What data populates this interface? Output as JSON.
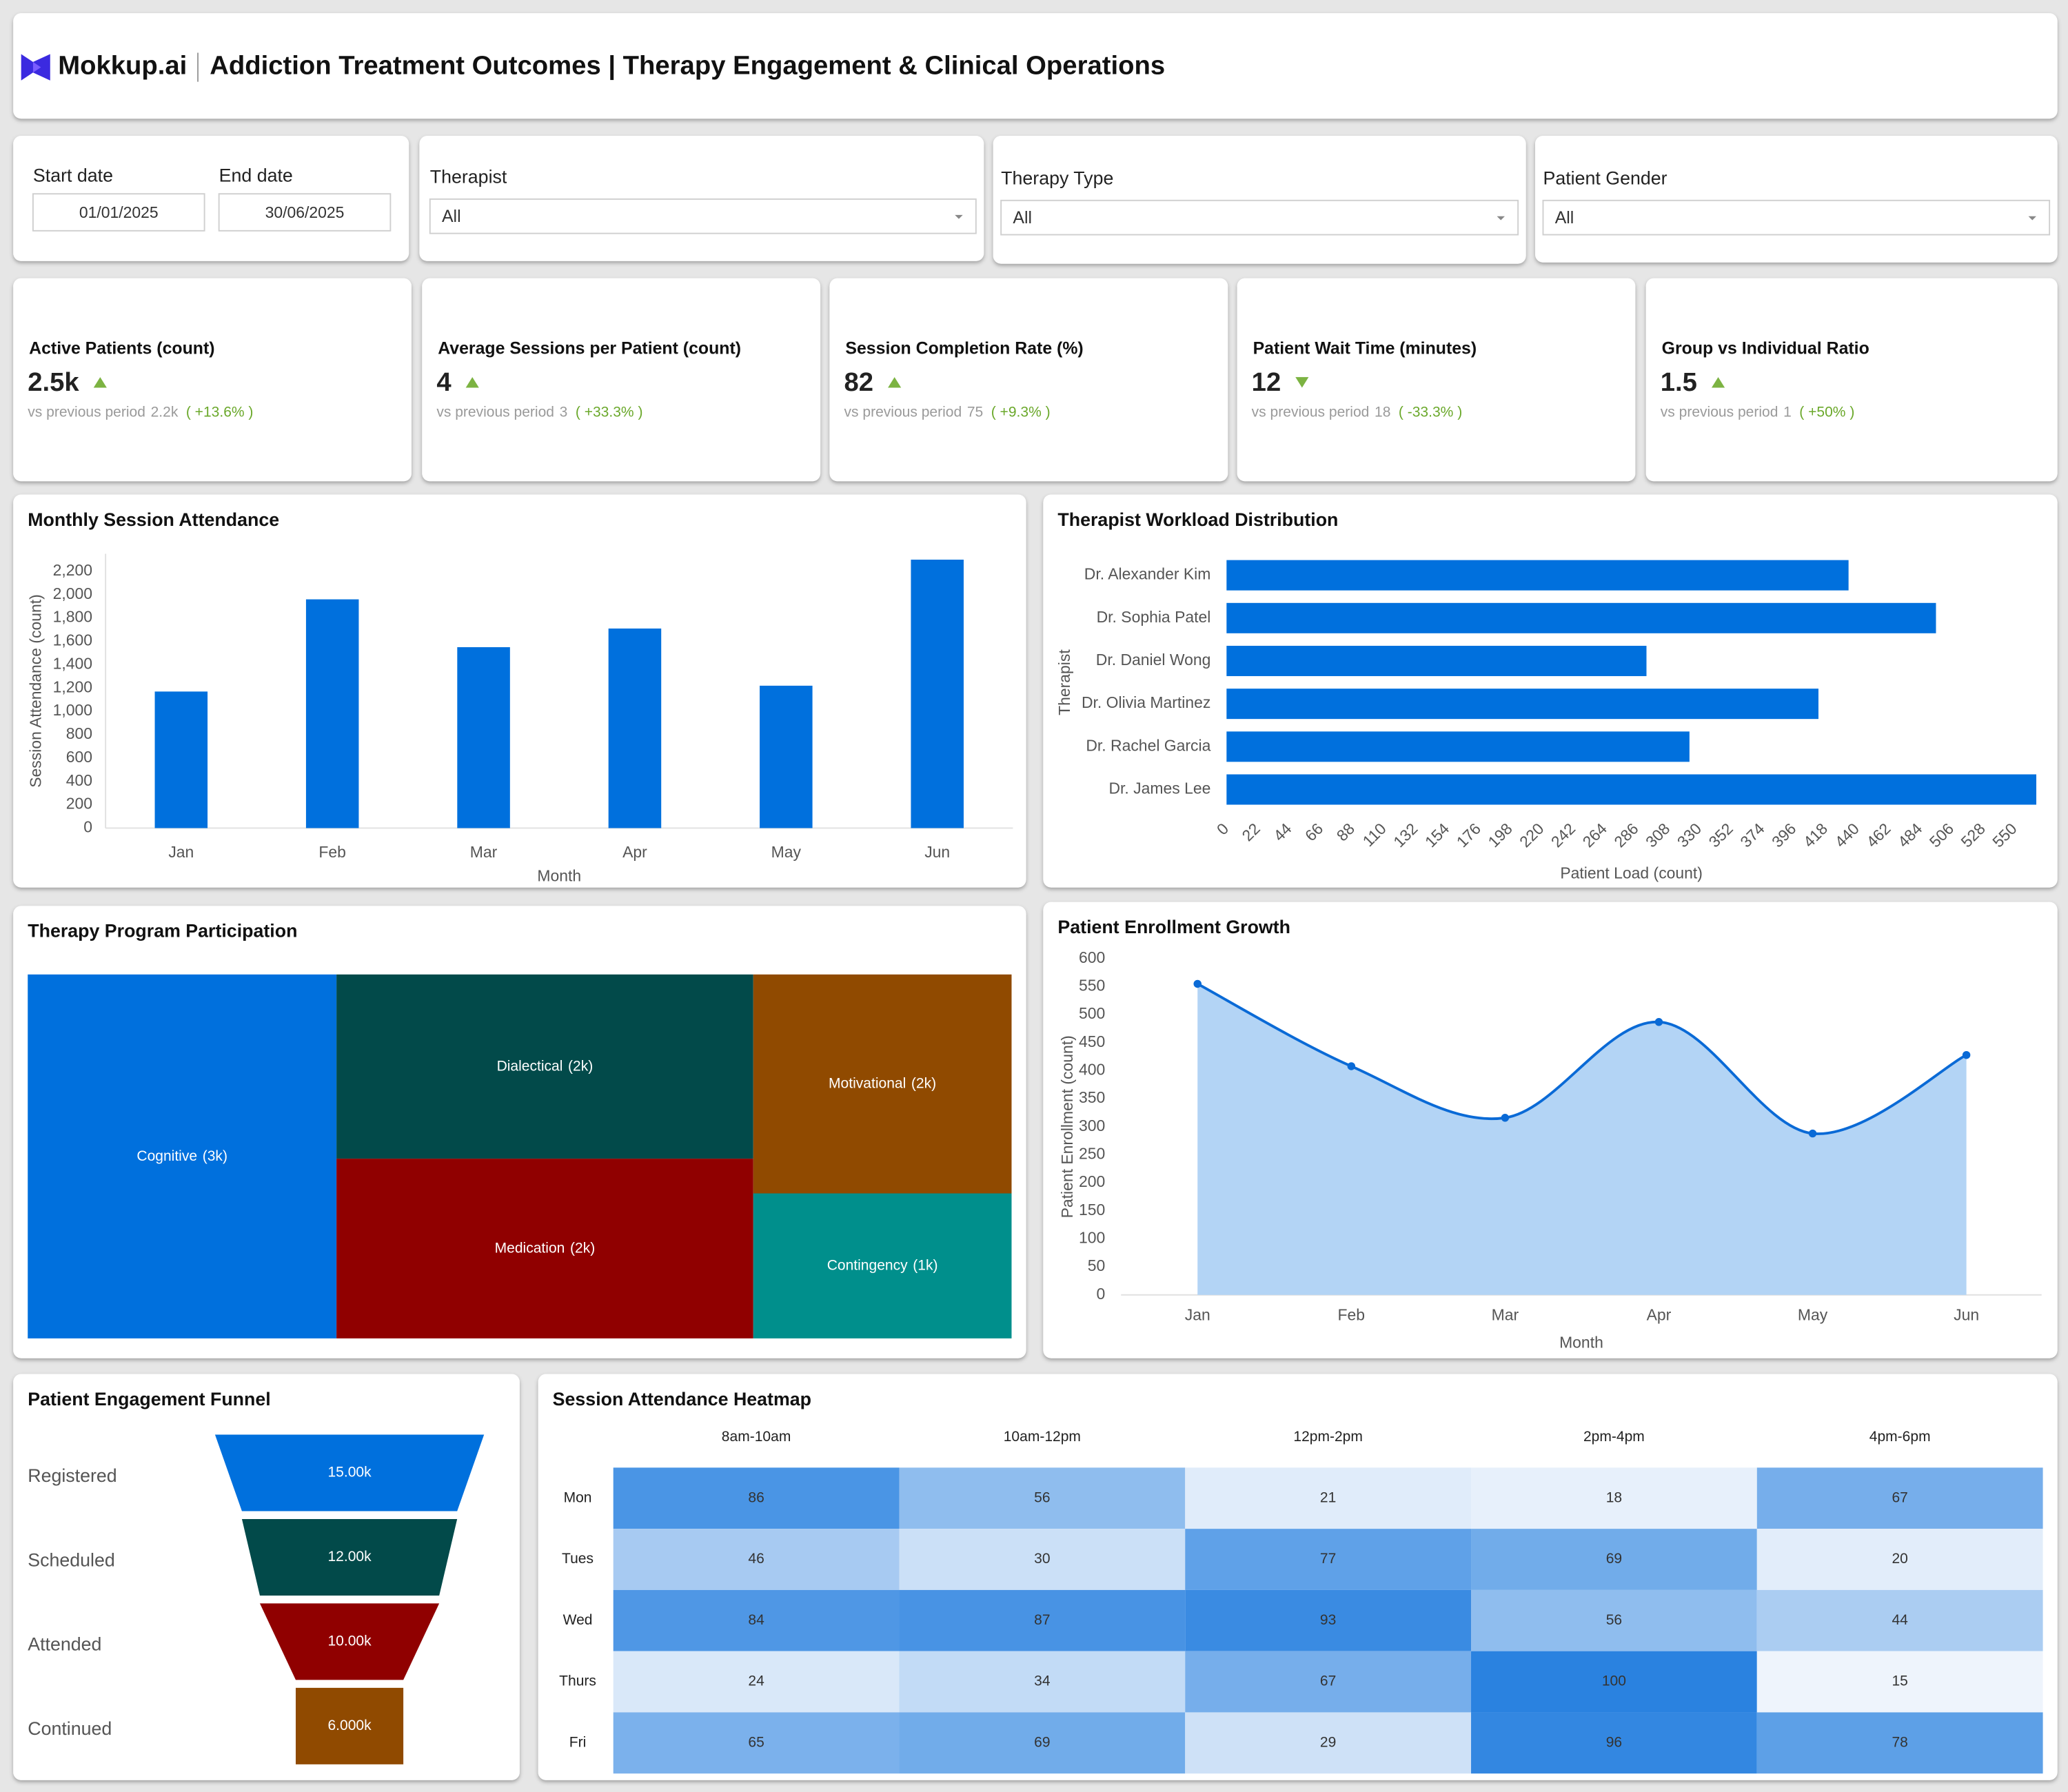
{
  "header": {
    "logo": "Mokkup.ai",
    "title": "Addiction Treatment Outcomes | Therapy Engagement & Clinical Operations"
  },
  "filters": [
    {
      "label": "Start date",
      "value": "01/01/2025"
    },
    {
      "label": "End date",
      "value": "30/06/2025"
    },
    {
      "label": "Therapist",
      "value": "All"
    },
    {
      "label": "Therapy Type",
      "value": "All"
    },
    {
      "label": "Patient Gender",
      "value": "All"
    }
  ],
  "kpis": [
    {
      "title": "Active Patients (count)",
      "value": "2.5k",
      "trend": "up",
      "comparison": "vs previous period",
      "previous": "2.2k",
      "change": "( +13.6% )"
    },
    {
      "title": "Average Sessions per Patient (count)",
      "value": "4",
      "trend": "up",
      "comparison": "vs previous period",
      "previous": "3",
      "change": "( +33.3% )"
    },
    {
      "title": "Session Completion Rate (%)",
      "value": "82",
      "trend": "up",
      "comparison": "vs previous period",
      "previous": "75",
      "change": "( +9.3% )"
    },
    {
      "title": "Patient Wait Time (minutes)",
      "value": "12",
      "trend": "down",
      "comparison": "vs previous period",
      "previous": "18",
      "change": "( -33.3% )"
    },
    {
      "title": "Group vs Individual Ratio",
      "value": "1.5",
      "trend": "up",
      "comparison": "vs previous period",
      "previous": "1",
      "change": "( +50% )"
    }
  ],
  "chart_data": [
    {
      "type": "bar",
      "title": "Monthly Session Attendance",
      "x_label": "Month",
      "y_label": "Session Attendance (count)",
      "categories": [
        "Jan",
        "Feb",
        "Mar",
        "Apr",
        "May",
        "Jun"
      ],
      "values": [
        1170,
        1960,
        1550,
        1710,
        1220,
        2300
      ],
      "color": "#0070DD",
      "ylim": [
        0,
        2350
      ],
      "yticks": [
        0,
        200,
        400,
        600,
        800,
        {
          "value": 1000,
          "label": "1,000"
        },
        {
          "value": 1200,
          "label": "1,200"
        },
        {
          "value": 1400,
          "label": "1,400"
        },
        {
          "value": 1600,
          "label": "1,600"
        },
        {
          "value": 1800,
          "label": "1,800"
        },
        {
          "value": 2000,
          "label": "2,000"
        },
        {
          "value": 2200,
          "label": "2,200"
        }
      ],
      "grid": false
    },
    {
      "type": "bar",
      "orientation": "horizontal",
      "title": "Therapist Workload Distribution",
      "x_label": "Patient Load (count)",
      "y_label": "Therapist",
      "categories": [
        "Dr. Alexander Kim",
        "Dr. Sophia Patel",
        "Dr. Daniel Wong",
        "Dr. Olivia Martinez",
        "Dr. Rachel Garcia",
        "Dr. James Lee"
      ],
      "values": [
        434,
        495,
        293,
        413,
        323,
        565
      ],
      "color": "#0070DD",
      "xlim": [
        0,
        565
      ],
      "xticks": [
        0,
        22,
        44,
        66,
        88,
        110,
        132,
        154,
        176,
        198,
        220,
        242,
        264,
        286,
        308,
        330,
        352,
        374,
        396,
        418,
        440,
        462,
        484,
        506,
        528,
        550
      ],
      "grid": false
    },
    {
      "type": "treemap",
      "title": "Therapy Program Participation",
      "categories": [
        "Cognitive",
        "Dialectical",
        "Medication",
        "Motivational",
        "Contingency"
      ],
      "values": [
        3000,
        2050,
        2000,
        1510,
        1000
      ],
      "value_labels": [
        "(3k)",
        "(2k)",
        "(2k)",
        "(2k)",
        "(1k)"
      ],
      "colors": [
        "#0070DD",
        "#024A4A",
        "#900000",
        "#904A00",
        "#008F8C"
      ]
    },
    {
      "type": "area",
      "title": "Patient Enrollment Growth",
      "x_label": "Month",
      "y_label": "Patient Enrollment (count)",
      "categories": [
        "Jan",
        "Feb",
        "Mar",
        "Apr",
        "May",
        "Jun"
      ],
      "values": [
        555,
        408,
        316,
        487,
        288,
        428
      ],
      "color": "#0A6AD6",
      "fill": "#B3D4F5",
      "ylim": [
        0,
        600
      ],
      "yticks": [
        0,
        50,
        100,
        150,
        200,
        250,
        300,
        350,
        400,
        450,
        500,
        550,
        600
      ],
      "grid": false
    },
    {
      "type": "funnel",
      "title": "Patient Engagement Funnel",
      "categories": [
        "Registered",
        "Scheduled",
        "Attended",
        "Continued"
      ],
      "values": [
        15000,
        12000,
        10000,
        6000
      ],
      "value_labels": [
        "15.00k",
        "12.00k",
        "10.00k",
        "6.000k"
      ],
      "colors": [
        "#0070DD",
        "#024A4A",
        "#900000",
        "#904A00"
      ]
    },
    {
      "type": "heatmap",
      "title": "Session Attendance Heatmap",
      "columns": [
        "8am-10am",
        "10am-12pm",
        "12pm-2pm",
        "2pm-4pm",
        "4pm-6pm"
      ],
      "rows": [
        "Mon",
        "Tues",
        "Wed",
        "Thurs",
        "Fri"
      ],
      "values": [
        [
          86,
          56,
          21,
          18,
          67
        ],
        [
          46,
          30,
          77,
          69,
          20
        ],
        [
          84,
          87,
          93,
          56,
          44
        ],
        [
          24,
          34,
          67,
          100,
          15
        ],
        [
          65,
          69,
          29,
          96,
          78
        ]
      ],
      "color_range": [
        "#EEF4FC",
        "#2A82E0"
      ]
    }
  ]
}
